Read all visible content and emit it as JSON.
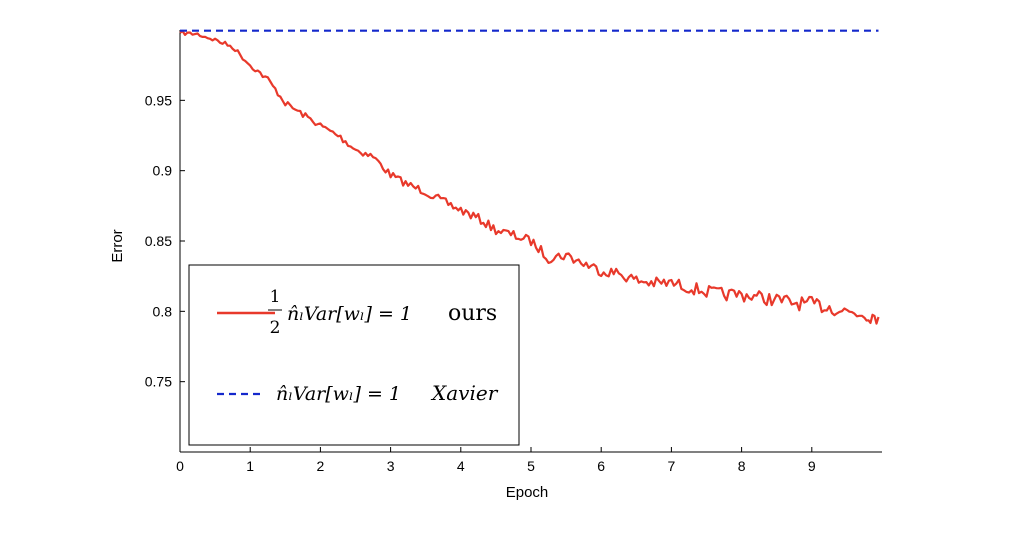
{
  "chart_data": {
    "type": "line",
    "title": "",
    "xlabel": "Epoch",
    "ylabel": "Error",
    "xlim": [
      0,
      10
    ],
    "ylim": [
      0.7,
      1.0
    ],
    "xticks": [
      0,
      1,
      2,
      3,
      4,
      5,
      6,
      7,
      8,
      9
    ],
    "xtick_labels": [
      "0",
      "1",
      "2",
      "3",
      "4",
      "5",
      "6",
      "7",
      "8",
      "9"
    ],
    "yticks": [
      0.75,
      0.8,
      0.85,
      0.9,
      0.95
    ],
    "ytick_labels": [
      "0.75",
      "0.8",
      "0.85",
      "0.9",
      "0.95"
    ],
    "grid": false,
    "legend_position": "lower-left",
    "series": [
      {
        "legend_math": "n̂ₗVar[wₗ] = 1",
        "legend_frac_num": "1",
        "legend_frac_den": "2",
        "legend_suffix": "ours",
        "color": "#e8392b",
        "style": "solid",
        "x": [
          0,
          0.25,
          0.5,
          0.75,
          1.0,
          1.25,
          1.5,
          1.75,
          2.0,
          2.25,
          2.5,
          2.75,
          3.0,
          3.25,
          3.5,
          3.75,
          4.0,
          4.25,
          4.5,
          4.75,
          5.0,
          5.25,
          5.5,
          5.75,
          6.0,
          6.25,
          6.5,
          6.75,
          7.0,
          7.25,
          7.5,
          7.75,
          8.0,
          8.25,
          8.5,
          8.75,
          9.0,
          9.25,
          9.5,
          9.75,
          9.95
        ],
        "y": [
          0.998,
          0.997,
          0.993,
          0.988,
          0.975,
          0.965,
          0.948,
          0.94,
          0.932,
          0.925,
          0.915,
          0.91,
          0.897,
          0.89,
          0.885,
          0.878,
          0.872,
          0.866,
          0.858,
          0.854,
          0.85,
          0.838,
          0.84,
          0.834,
          0.829,
          0.827,
          0.822,
          0.82,
          0.82,
          0.817,
          0.814,
          0.812,
          0.812,
          0.81,
          0.808,
          0.806,
          0.805,
          0.803,
          0.8,
          0.798,
          0.796
        ]
      },
      {
        "legend_math": "n̂ₗVar[wₗ] = 1",
        "legend_suffix": "Xavier",
        "color": "#1428cc",
        "style": "dashed",
        "x": [
          0,
          9.95
        ],
        "y": [
          0.9995,
          0.9995
        ]
      }
    ]
  }
}
